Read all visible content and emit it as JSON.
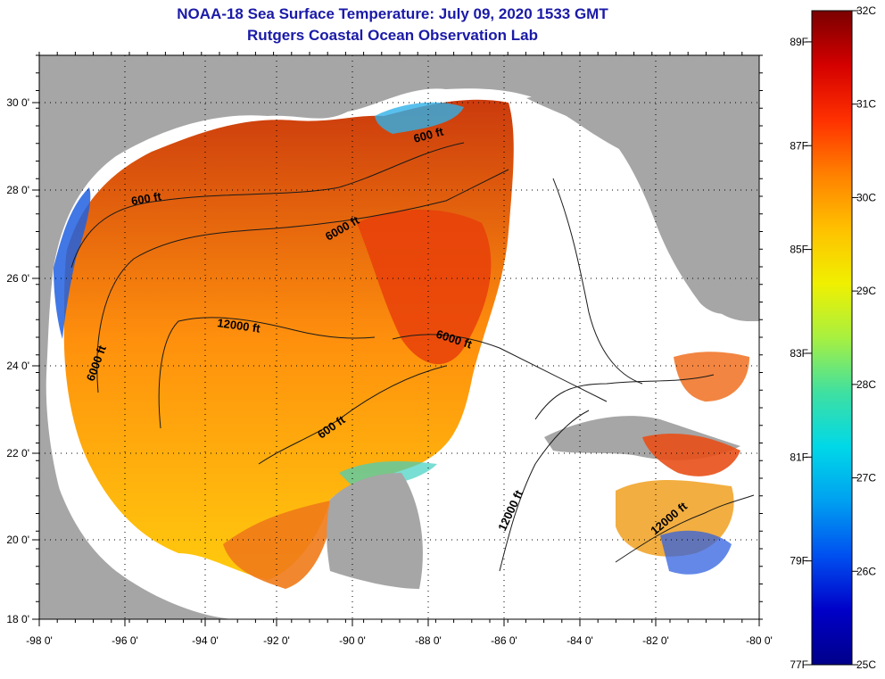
{
  "title": "NOAA-18 Sea Surface Temperature:  July 09, 2020 1533 GMT",
  "subtitle": "Rutgers Coastal Ocean Observation Lab",
  "lon_ticks": [
    "-98 0'",
    "-96 0'",
    "-94 0'",
    "-92 0'",
    "-90 0'",
    "-88 0'",
    "-86 0'",
    "-84 0'",
    "-82 0'",
    "-80 0'"
  ],
  "lat_ticks": [
    "30 0'",
    "28 0'",
    "26 0'",
    "24 0'",
    "22 0'",
    "20 0'",
    "18 0'"
  ],
  "contours": [
    {
      "label": "600 ft"
    },
    {
      "label": "6000 ft"
    },
    {
      "label": "12000 ft"
    },
    {
      "label": "6000 ft"
    },
    {
      "label": "6000 ft"
    },
    {
      "label": "600 ft"
    },
    {
      "label": "600 ft"
    },
    {
      "label": "12000 ft"
    },
    {
      "label": "12000 ft"
    }
  ],
  "colorbar": {
    "celsius": [
      "32C",
      "31C",
      "30C",
      "29C",
      "28C",
      "27C",
      "26C",
      "25C"
    ],
    "fahrenheit": [
      "89F",
      "87F",
      "85F",
      "83F",
      "81F",
      "79F",
      "77F"
    ],
    "gradient": [
      "#7a0000",
      "#d40000",
      "#ff3000",
      "#ff8000",
      "#ffc000",
      "#f0f000",
      "#a8f040",
      "#40e0a0",
      "#00d8e8",
      "#00a0f0",
      "#0050f0",
      "#0000c8",
      "#00008a"
    ]
  }
}
